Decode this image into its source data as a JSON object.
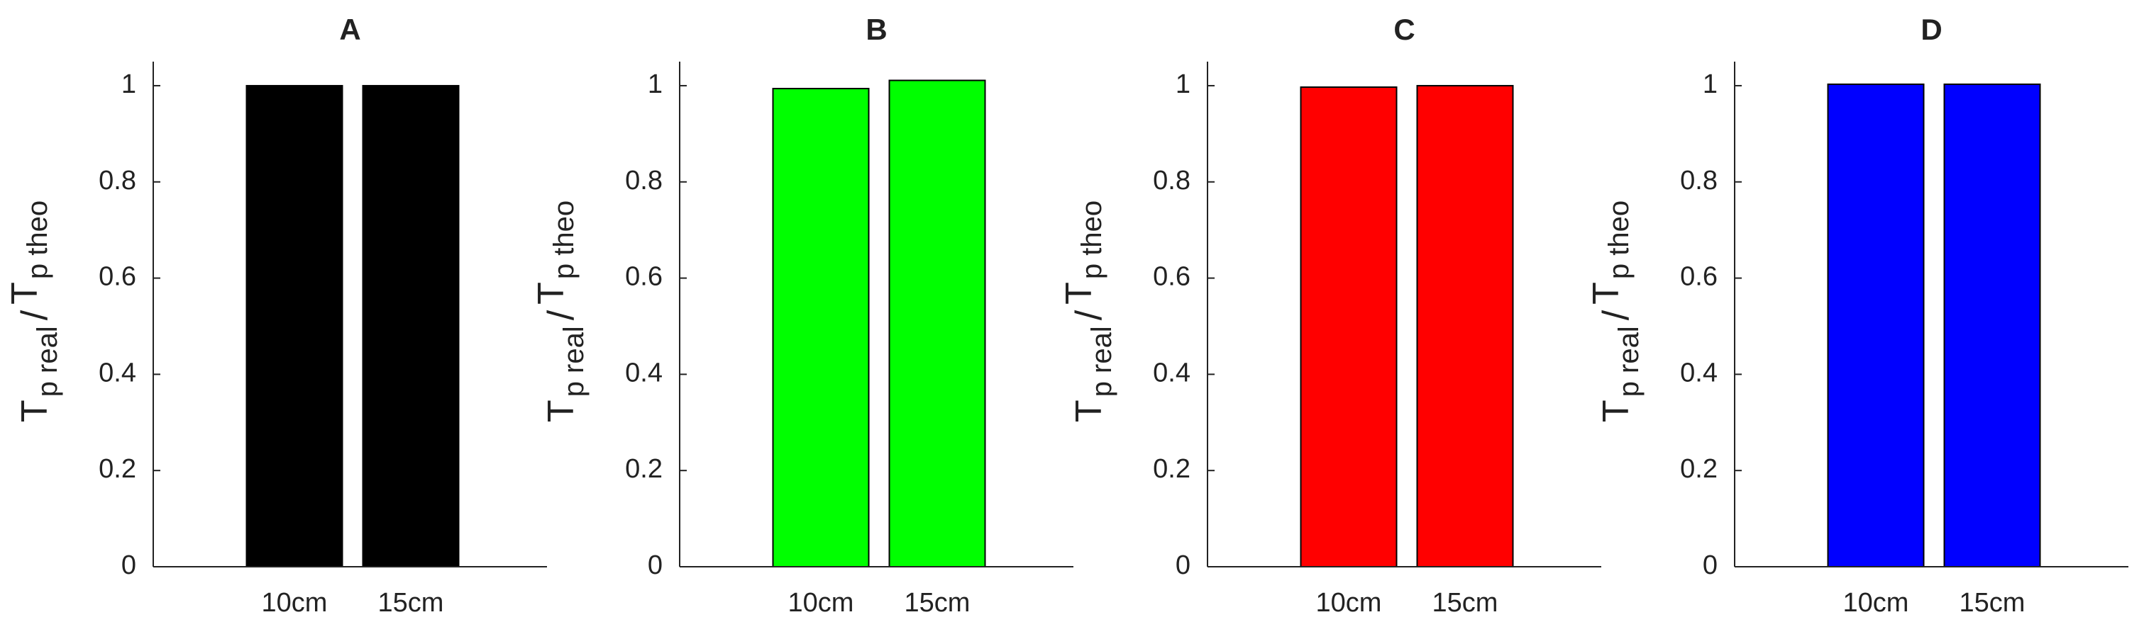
{
  "chart_data": [
    {
      "type": "bar",
      "title": "A",
      "categories": [
        "10cm",
        "15cm"
      ],
      "values": [
        1.0,
        1.0
      ],
      "color": "#000000",
      "ylabel": [
        "T",
        "p real",
        "/",
        "T",
        "p theo"
      ],
      "ylim": [
        0,
        1.05
      ],
      "yticks": [
        0,
        0.2,
        0.4,
        0.6,
        0.8,
        1
      ]
    },
    {
      "type": "bar",
      "title": "B",
      "categories": [
        "10cm",
        "15cm"
      ],
      "values": [
        0.994,
        1.011
      ],
      "color": "#00ff00",
      "ylabel": [
        "T",
        "p real",
        "/",
        "T",
        "p theo"
      ],
      "ylim": [
        0,
        1.05
      ],
      "yticks": [
        0,
        0.2,
        0.4,
        0.6,
        0.8,
        1
      ]
    },
    {
      "type": "bar",
      "title": "C",
      "categories": [
        "10cm",
        "15cm"
      ],
      "values": [
        0.997,
        1.0
      ],
      "color": "#ff0000",
      "ylabel": [
        "T",
        "p real",
        "/",
        "T",
        "p theo"
      ],
      "ylim": [
        0,
        1.05
      ],
      "yticks": [
        0,
        0.2,
        0.4,
        0.6,
        0.8,
        1
      ]
    },
    {
      "type": "bar",
      "title": "D",
      "categories": [
        "10cm",
        "15cm"
      ],
      "values": [
        1.003,
        1.003
      ],
      "color": "#0000ff",
      "ylabel": [
        "T",
        "p real",
        "/",
        "T",
        "p theo"
      ],
      "ylim": [
        0,
        1.05
      ],
      "yticks": [
        0,
        0.2,
        0.4,
        0.6,
        0.8,
        1
      ]
    }
  ]
}
